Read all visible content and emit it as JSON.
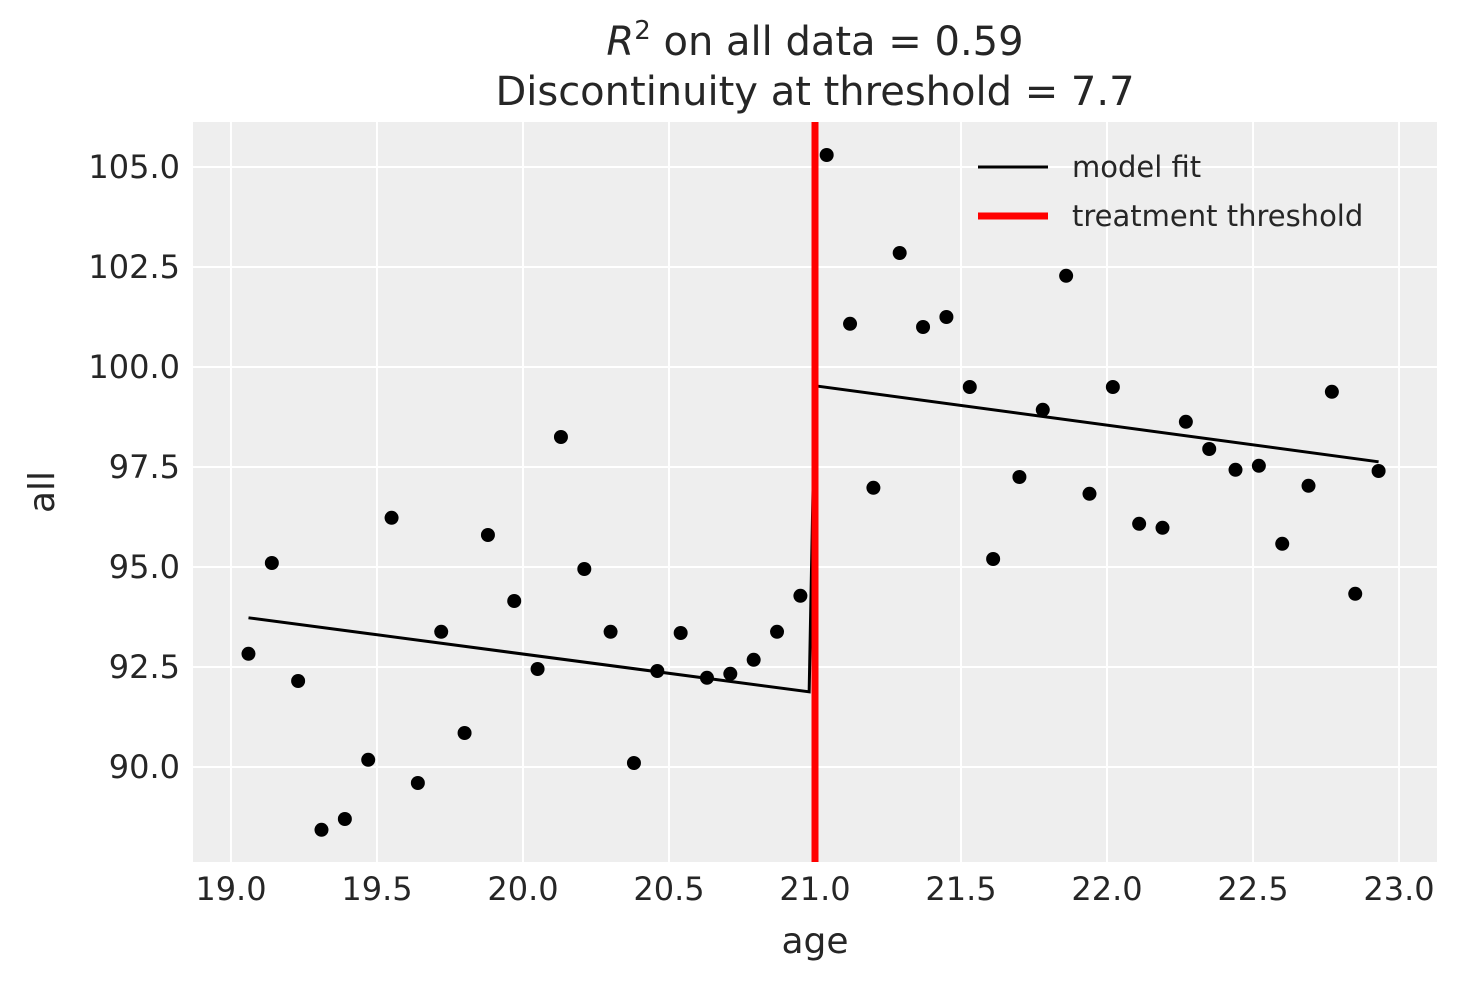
{
  "chart_data": {
    "type": "scatter",
    "title": {
      "line1_symbol": "R",
      "line1_superscript": "2",
      "line1_rest": " on all data = 0.59",
      "line2": "Discontinuity at threshold = 7.7"
    },
    "xlabel": "age",
    "ylabel": "all",
    "xlim": [
      18.87,
      23.13
    ],
    "ylim": [
      87.625,
      106.125
    ],
    "xticks": [
      19.0,
      19.5,
      20.0,
      20.5,
      21.0,
      21.5,
      22.0,
      22.5,
      23.0
    ],
    "xtick_labels": [
      "19.0",
      "19.5",
      "20.0",
      "20.5",
      "21.0",
      "21.5",
      "22.0",
      "22.5",
      "23.0"
    ],
    "yticks": [
      90.0,
      92.5,
      95.0,
      97.5,
      100.0,
      102.5,
      105.0
    ],
    "ytick_labels": [
      "90.0",
      "92.5",
      "95.0",
      "97.5",
      "100.0",
      "102.5",
      "105.0"
    ],
    "grid": true,
    "background": "#eeeeee",
    "legend_placement": "top-right",
    "legend": [
      {
        "label": "model fit",
        "color": "#000000"
      },
      {
        "label": "treatment threshold",
        "color": "#ff0000"
      }
    ],
    "points": {
      "color": "#000000",
      "x": [
        19.06,
        19.14,
        19.23,
        19.31,
        19.39,
        19.47,
        19.55,
        19.64,
        19.72,
        19.8,
        19.88,
        19.97,
        20.05,
        20.13,
        20.21,
        20.3,
        20.38,
        20.46,
        20.54,
        20.63,
        20.71,
        20.79,
        20.87,
        20.95,
        21.04,
        21.12,
        21.2,
        21.29,
        21.37,
        21.45,
        21.53,
        21.61,
        21.7,
        21.78,
        21.86,
        21.94,
        22.02,
        22.11,
        22.19,
        22.27,
        22.35,
        22.44,
        22.52,
        22.6,
        22.69,
        22.77,
        22.85,
        22.93
      ],
      "y": [
        92.83,
        95.1,
        92.15,
        88.43,
        88.7,
        90.18,
        96.23,
        89.6,
        93.38,
        90.85,
        95.8,
        94.15,
        92.45,
        98.25,
        94.95,
        93.38,
        90.1,
        92.4,
        93.35,
        92.23,
        92.33,
        92.68,
        93.38,
        94.28,
        105.3,
        101.08,
        96.98,
        102.85,
        101.0,
        101.25,
        99.5,
        95.2,
        97.25,
        98.93,
        102.28,
        96.83,
        99.5,
        96.08,
        95.98,
        98.63,
        97.95,
        97.43,
        97.53,
        95.58,
        97.03,
        99.38,
        94.33,
        97.4
      ]
    },
    "model_fit": {
      "color": "#000000",
      "x": [
        19.06,
        20.98,
        21.0,
        22.93
      ],
      "y": [
        93.73,
        91.88,
        99.53,
        97.63
      ]
    },
    "threshold": {
      "x": 21.0,
      "color": "#ff0000"
    }
  }
}
